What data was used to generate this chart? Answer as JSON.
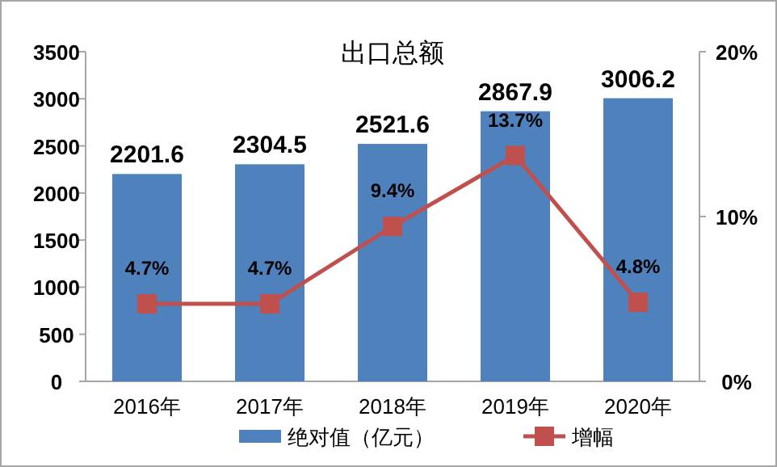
{
  "chart_data": {
    "type": "bar",
    "title": "出口总额",
    "categories": [
      "2016年",
      "2017年",
      "2018年",
      "2019年",
      "2020年"
    ],
    "series": [
      {
        "name": "绝对值（亿元）",
        "color": "#4f81bd",
        "values": [
          2201.6,
          2304.5,
          2521.6,
          2867.9,
          3006.2
        ],
        "value_labels": [
          "2201.6",
          "2304.5",
          "2521.6",
          "2867.9",
          "3006.2"
        ]
      },
      {
        "name": "增幅",
        "type": "line",
        "axis": "y2",
        "color": "#c0504d",
        "marker": "square",
        "values": [
          4.7,
          4.7,
          9.4,
          13.7,
          4.8
        ],
        "value_labels": [
          "4.7%",
          "4.7%",
          "9.4%",
          "13.7%",
          "4.8%"
        ]
      }
    ],
    "ylim": [
      0,
      3500
    ],
    "yticks": [
      0,
      500,
      1000,
      1500,
      2000,
      2500,
      3000,
      3500
    ],
    "y2lim": [
      0,
      20
    ],
    "y2ticks": [
      {
        "value": 0,
        "label": "0%"
      },
      {
        "value": 10,
        "label": "10%"
      },
      {
        "value": 20,
        "label": "20%"
      }
    ],
    "legend": "bottom",
    "grid": false
  }
}
